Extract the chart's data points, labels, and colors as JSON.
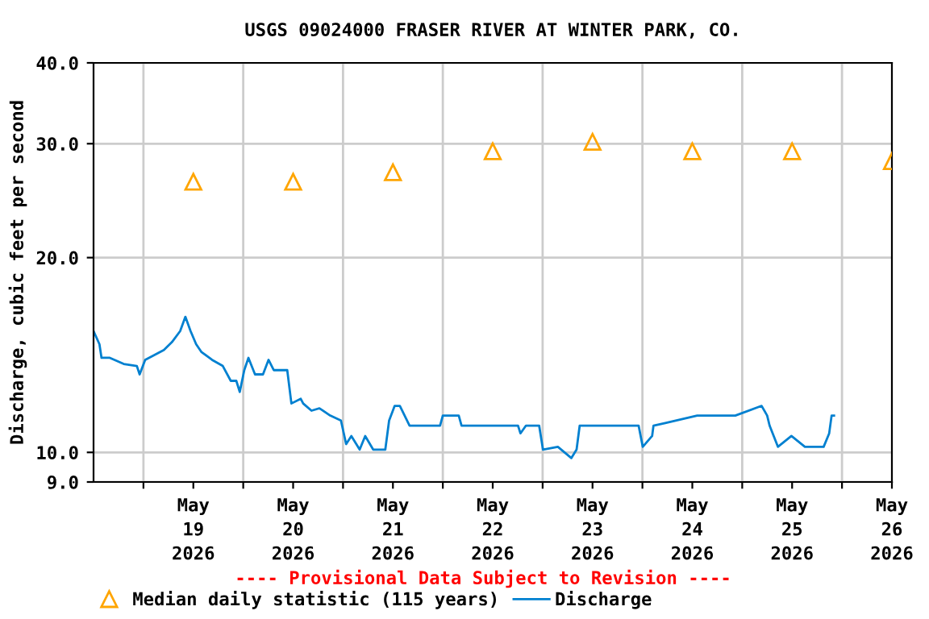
{
  "chart_data": {
    "type": "line",
    "title": "USGS 09024000 FRASER RIVER AT WINTER PARK, CO.",
    "ylabel": "Discharge, cubic feet per second",
    "log": "y",
    "grid": true,
    "legend": "bottom",
    "xlim": [
      "2026-05-18T12:00",
      "2026-05-26T12:00"
    ],
    "xticks": [
      {
        "value": "2026-05-19T00:00",
        "label": null
      },
      {
        "value": "2026-05-19T12:00",
        "label": "May\n19\n2026"
      },
      {
        "value": "2026-05-20T00:00",
        "label": null
      },
      {
        "value": "2026-05-20T12:00",
        "label": "May\n20\n2026"
      },
      {
        "value": "2026-05-21T00:00",
        "label": null
      },
      {
        "value": "2026-05-21T12:00",
        "label": "May\n21\n2026"
      },
      {
        "value": "2026-05-22T00:00",
        "label": null
      },
      {
        "value": "2026-05-22T12:00",
        "label": "May\n22\n2026"
      },
      {
        "value": "2026-05-23T00:00",
        "label": null
      },
      {
        "value": "2026-05-23T12:00",
        "label": "May\n23\n2026"
      },
      {
        "value": "2026-05-24T00:00",
        "label": null
      },
      {
        "value": "2026-05-24T12:00",
        "label": "May\n24\n2026"
      },
      {
        "value": "2026-05-25T00:00",
        "label": null
      },
      {
        "value": "2026-05-25T12:00",
        "label": "May\n25\n2026"
      },
      {
        "value": "2026-05-26T00:00",
        "label": null
      },
      {
        "value": "2026-05-26T12:00",
        "label": "May\n26\n2026"
      }
    ],
    "ylim": [
      9,
      40
    ],
    "yticks": [
      {
        "value": 9,
        "label": "9.0"
      },
      {
        "value": 10,
        "label": "10.0"
      },
      {
        "value": 20,
        "label": "20.0"
      },
      {
        "value": 30,
        "label": "30.0"
      },
      {
        "value": 40,
        "label": "40.0"
      }
    ],
    "annotations": [
      "---- Provisional Data Subject to Revision ----"
    ],
    "series": [
      {
        "name": "Median daily statistic (115 years)",
        "type": "scatter",
        "marker": "triangle",
        "color": "#ffa500",
        "x": [
          "2026-05-19T12:00",
          "2026-05-20T12:00",
          "2026-05-21T12:00",
          "2026-05-22T12:00",
          "2026-05-23T12:00",
          "2026-05-24T12:00",
          "2026-05-25T12:00",
          "2026-05-26T12:00"
        ],
        "values": [
          26.2,
          26.2,
          27.1,
          29.2,
          30.2,
          29.2,
          29.2,
          28.2
        ]
      },
      {
        "name": "Discharge",
        "color": "#0080d0",
        "x": [
          "2026-05-18T12:00",
          "2026-05-18T13:25",
          "2026-05-18T13:55",
          "2026-05-18T15:55",
          "2026-05-18T19:15",
          "2026-05-18T22:25",
          "2026-05-18T23:05",
          "2026-05-19T00:25",
          "2026-05-19T04:55",
          "2026-05-19T06:50",
          "2026-05-19T08:50",
          "2026-05-19T10:05",
          "2026-05-19T11:20",
          "2026-05-19T12:40",
          "2026-05-19T13:55",
          "2026-05-19T16:30",
          "2026-05-19T19:05",
          "2026-05-19T21:00",
          "2026-05-19T22:20",
          "2026-05-19T23:10",
          "2026-05-20T00:15",
          "2026-05-20T01:15",
          "2026-05-20T02:50",
          "2026-05-20T04:45",
          "2026-05-20T06:05",
          "2026-05-20T07:20",
          "2026-05-20T10:35",
          "2026-05-20T11:35",
          "2026-05-20T13:50",
          "2026-05-20T14:25",
          "2026-05-20T16:25",
          "2026-05-20T18:20",
          "2026-05-20T20:55",
          "2026-05-20T23:30",
          "2026-05-21T00:45",
          "2026-05-21T02:00",
          "2026-05-21T04:00",
          "2026-05-21T05:20",
          "2026-05-21T07:15",
          "2026-05-21T10:10",
          "2026-05-21T11:05",
          "2026-05-21T12:25",
          "2026-05-21T13:40",
          "2026-05-21T16:00",
          "2026-05-21T23:20",
          "2026-05-22T00:00",
          "2026-05-22T03:50",
          "2026-05-22T04:30",
          "2026-05-22T15:30",
          "2026-05-22T18:05",
          "2026-05-22T18:40",
          "2026-05-22T20:00",
          "2026-05-22T23:10",
          "2026-05-23T00:05",
          "2026-05-23T03:40",
          "2026-05-23T06:55",
          "2026-05-23T08:10",
          "2026-05-23T08:55",
          "2026-05-23T23:05",
          "2026-05-24T00:05",
          "2026-05-24T02:20",
          "2026-05-24T02:40",
          "2026-05-24T05:30",
          "2026-05-24T13:10",
          "2026-05-24T22:20",
          "2026-05-25T04:40",
          "2026-05-25T06:00",
          "2026-05-25T06:35",
          "2026-05-25T08:35",
          "2026-05-25T11:50",
          "2026-05-25T15:05",
          "2026-05-25T19:35",
          "2026-05-25T20:55",
          "2026-05-25T21:30",
          "2026-05-25T22:05"
        ],
        "values": [
          15.4,
          14.7,
          14.0,
          14.0,
          13.7,
          13.6,
          13.2,
          13.9,
          14.4,
          14.8,
          15.4,
          16.2,
          15.4,
          14.7,
          14.3,
          13.9,
          13.6,
          12.9,
          12.9,
          12.4,
          13.4,
          14.0,
          13.2,
          13.2,
          13.9,
          13.4,
          13.4,
          11.9,
          12.1,
          11.9,
          11.6,
          11.7,
          11.4,
          11.2,
          10.3,
          10.6,
          10.1,
          10.6,
          10.1,
          10.1,
          11.2,
          11.8,
          11.8,
          11.0,
          11.0,
          11.4,
          11.4,
          11.0,
          11.0,
          11.0,
          10.7,
          11.0,
          11.0,
          10.1,
          10.2,
          9.8,
          10.1,
          11.0,
          11.0,
          10.2,
          10.6,
          11.0,
          11.1,
          11.4,
          11.4,
          11.8,
          11.4,
          11.0,
          10.2,
          10.6,
          10.2,
          10.2,
          10.7,
          11.4,
          11.4
        ]
      }
    ]
  }
}
